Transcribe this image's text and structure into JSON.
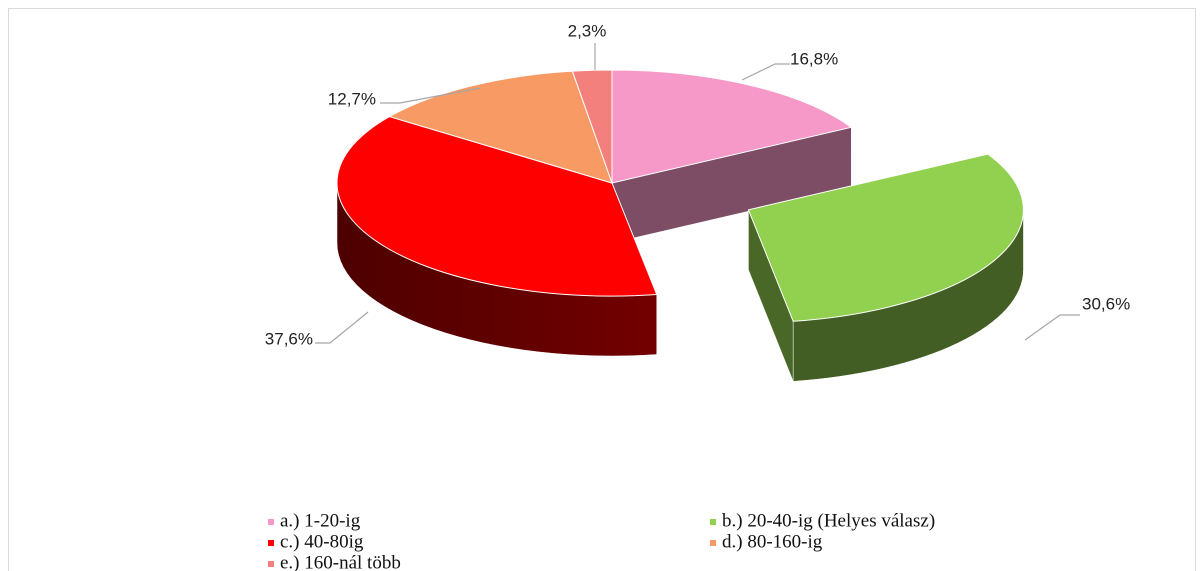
{
  "chart_data": {
    "type": "pie3d",
    "categories": [
      "a.) 1-20-ig",
      "b.) 20-40-ig (Helyes válasz)",
      "c.) 40-80ig",
      "d.) 80-160-ig",
      "e.) 160-nál több"
    ],
    "values": [
      16.8,
      30.6,
      37.6,
      12.7,
      2.3
    ],
    "value_labels": [
      "16,8%",
      "30,6%",
      "37,6%",
      "12,7%",
      "2,3%"
    ],
    "colors": [
      "#f799c8",
      "#92d050",
      "#ff0000",
      "#f79a64",
      "#f4807e"
    ],
    "legend": "bottom"
  }
}
